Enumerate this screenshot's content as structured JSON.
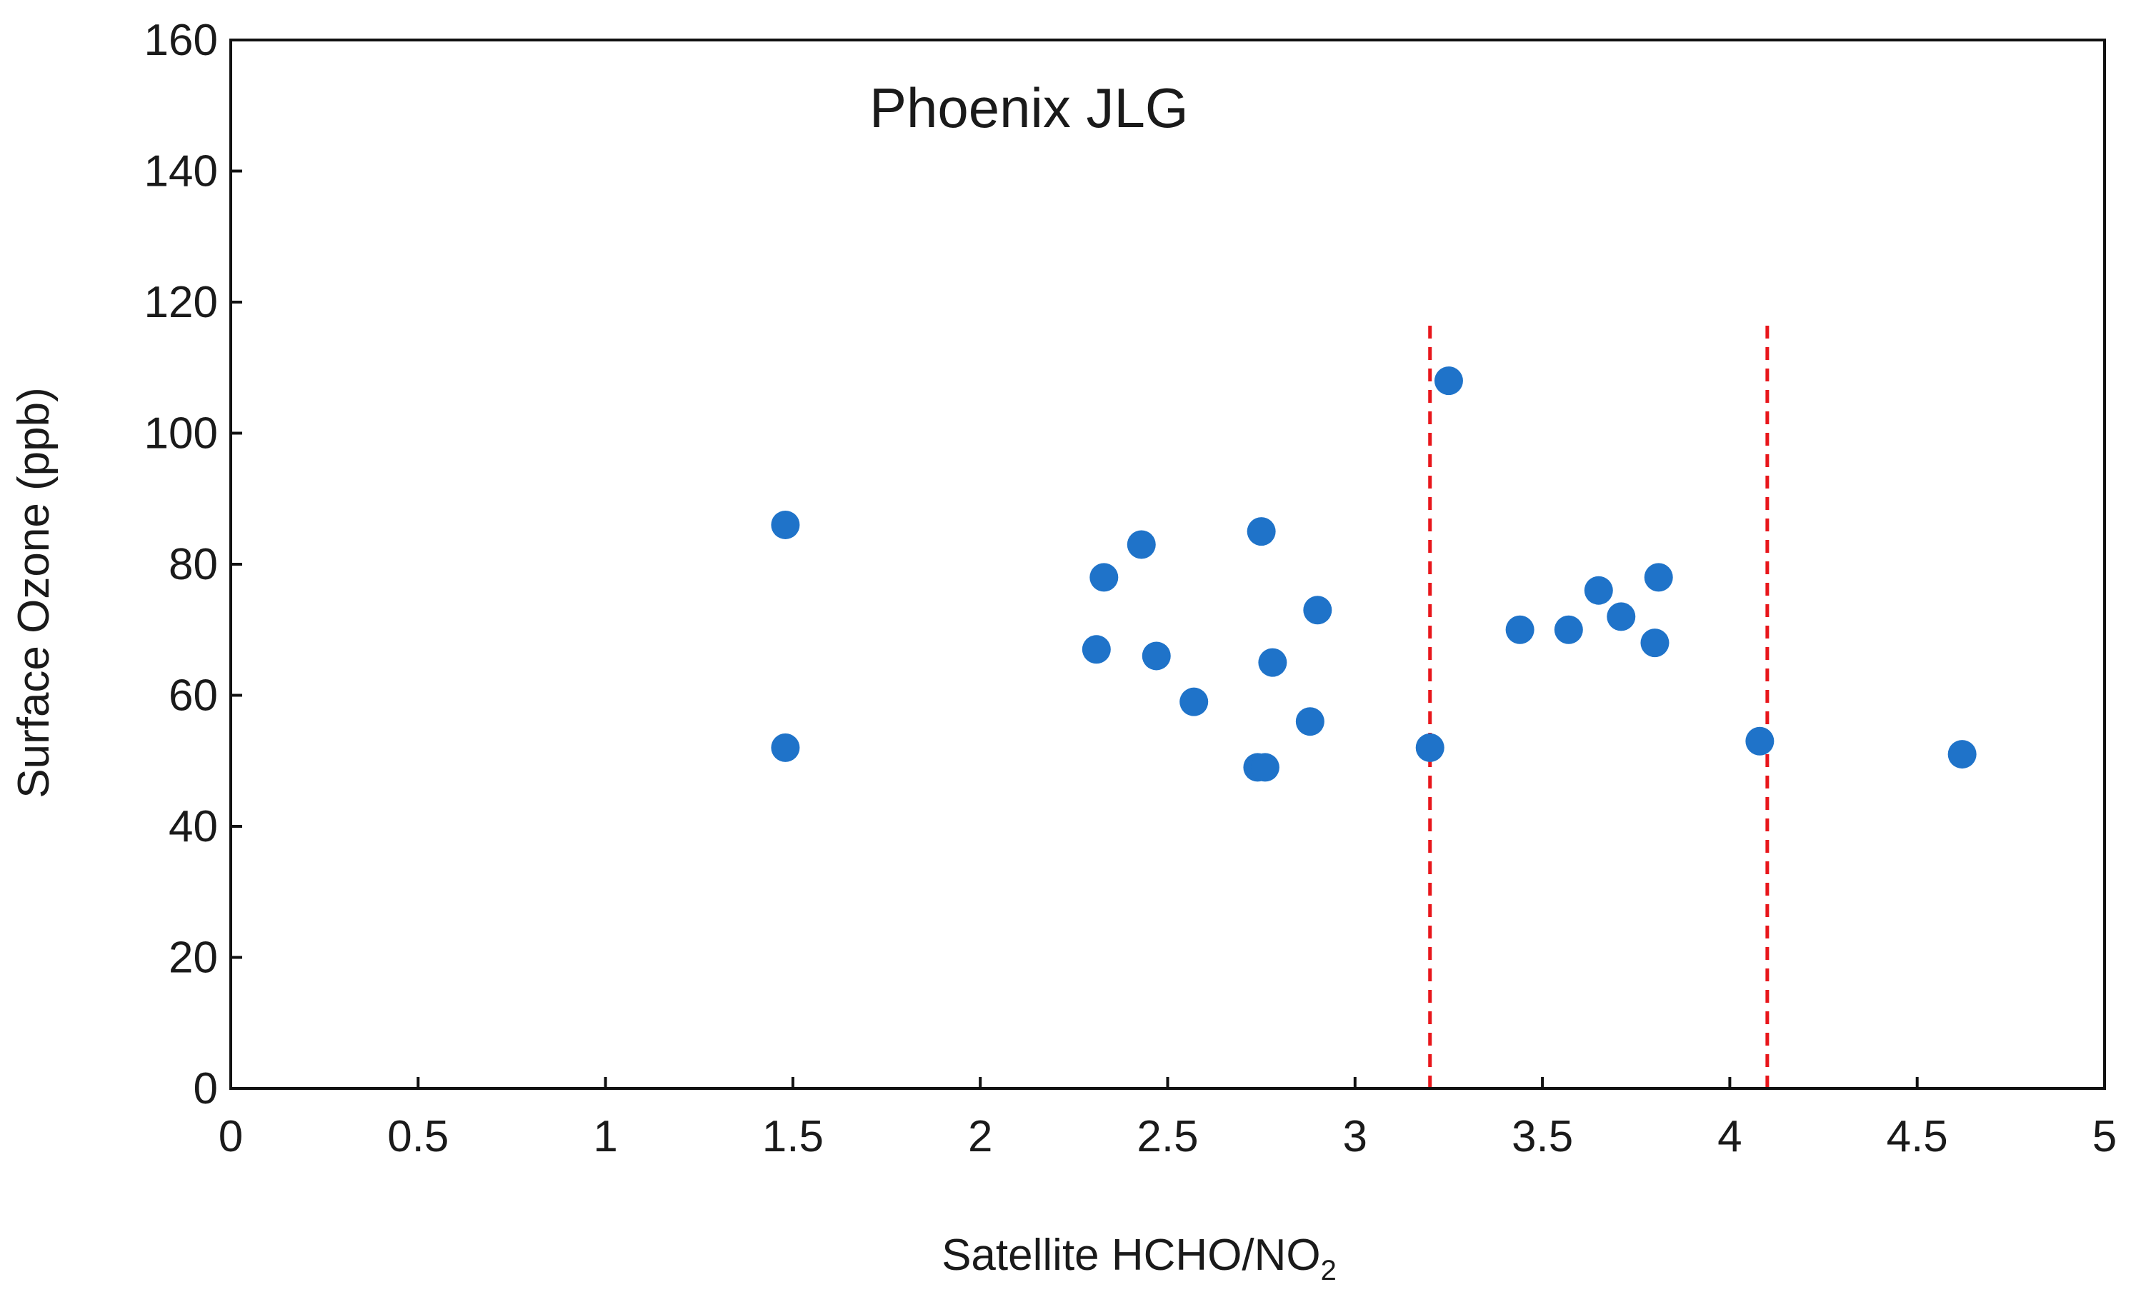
{
  "chart_data": {
    "type": "scatter",
    "title": "Phoenix JLG",
    "xlabel": {
      "main": "Satellite HCHO/NO",
      "subscript": "2"
    },
    "ylabel": "Surface Ozone (ppb)",
    "xlim": [
      0,
      5
    ],
    "ylim": [
      0,
      160
    ],
    "xticks": [
      0,
      0.5,
      1,
      1.5,
      2,
      2.5,
      3,
      3.5,
      4,
      4.5,
      5
    ],
    "xtick_labels": [
      "0",
      "0.5",
      "1",
      "1.5",
      "2",
      "2.5",
      "3",
      "3.5",
      "4",
      "4.5",
      "5"
    ],
    "yticks": [
      0,
      20,
      40,
      60,
      80,
      100,
      120,
      140,
      160
    ],
    "ytick_labels": [
      "0",
      "20",
      "40",
      "60",
      "80",
      "100",
      "120",
      "140",
      "160"
    ],
    "grid": false,
    "series": [
      {
        "color": "#1f73c9",
        "points": [
          {
            "x": 1.48,
            "y": 86
          },
          {
            "x": 1.48,
            "y": 52
          },
          {
            "x": 2.31,
            "y": 67
          },
          {
            "x": 2.33,
            "y": 78
          },
          {
            "x": 2.43,
            "y": 83
          },
          {
            "x": 2.47,
            "y": 66
          },
          {
            "x": 2.57,
            "y": 59
          },
          {
            "x": 2.74,
            "y": 49
          },
          {
            "x": 2.76,
            "y": 49
          },
          {
            "x": 2.75,
            "y": 85
          },
          {
            "x": 2.78,
            "y": 65
          },
          {
            "x": 2.88,
            "y": 56
          },
          {
            "x": 2.9,
            "y": 73
          },
          {
            "x": 3.2,
            "y": 52
          },
          {
            "x": 3.25,
            "y": 108
          },
          {
            "x": 3.44,
            "y": 70
          },
          {
            "x": 3.57,
            "y": 70
          },
          {
            "x": 3.65,
            "y": 76
          },
          {
            "x": 3.71,
            "y": 72
          },
          {
            "x": 3.8,
            "y": 68
          },
          {
            "x": 3.81,
            "y": 78
          },
          {
            "x": 4.08,
            "y": 53
          },
          {
            "x": 4.62,
            "y": 51
          }
        ]
      }
    ],
    "reference_lines": [
      {
        "orientation": "vertical",
        "x": 3.2,
        "y_range": [
          0,
          117
        ],
        "color": "#e8161b",
        "style": "dashed"
      },
      {
        "orientation": "vertical",
        "x": 4.1,
        "y_range": [
          0,
          117
        ],
        "color": "#e8161b",
        "style": "dashed"
      }
    ]
  }
}
